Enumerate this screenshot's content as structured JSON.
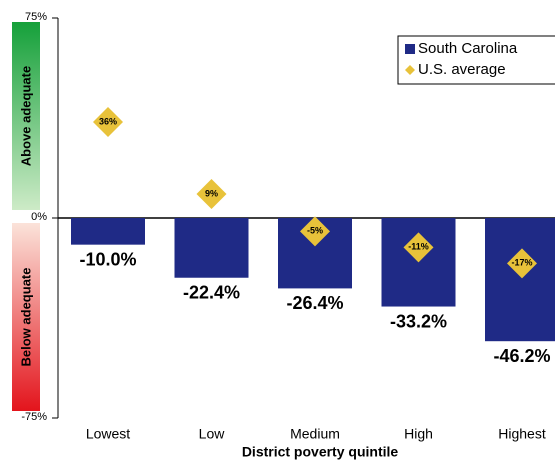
{
  "chart_data": {
    "type": "bar",
    "x_label": "District poverty quintile",
    "categories": [
      "Lowest",
      "Low",
      "Medium",
      "High",
      "Highest"
    ],
    "side_labels": [
      "Above adequate",
      "Below adequate"
    ],
    "ylim": [
      -75,
      75
    ],
    "yticks": [
      {
        "value": -75,
        "label": "-75%"
      },
      {
        "value": 0,
        "label": "0%"
      },
      {
        "value": 75,
        "label": "75%"
      }
    ],
    "legend": "top-right",
    "series": [
      {
        "name": "South Carolina",
        "color": "#1f2a86",
        "mark": "bar",
        "values": [
          -10.0,
          -22.4,
          -26.4,
          -33.2,
          -46.2
        ],
        "value_labels": [
          "-10.0%",
          "-22.4%",
          "-26.4%",
          "-33.2%",
          "-46.2%"
        ]
      },
      {
        "name": "U.S. average",
        "color": "#e8c23a",
        "mark": "diamond",
        "values": [
          36,
          9,
          -5,
          -11,
          -17
        ],
        "value_labels": [
          "36%",
          "9%",
          "-5%",
          "-11%",
          "-17%"
        ]
      }
    ]
  }
}
